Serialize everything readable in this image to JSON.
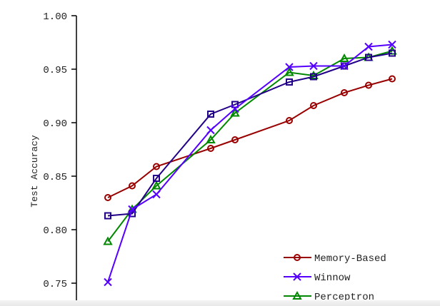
{
  "chart_data": {
    "type": "line",
    "title": "",
    "xlabel": "",
    "ylabel": "Test Accuracy",
    "ylim": [
      0.72,
      1.0
    ],
    "yticks": [
      "0.75",
      "0.80",
      "0.85",
      "0.90",
      "0.95",
      "1.00"
    ],
    "grid": false,
    "legend_position": "bottom-right",
    "series": [
      {
        "name": "Memory-Based",
        "color": "#990000",
        "marker": "circle",
        "values": [
          0.83,
          0.841,
          0.859,
          0.876,
          0.884,
          0.902,
          0.916,
          0.928,
          0.935,
          0.941
        ]
      },
      {
        "name": "Winnow",
        "color": "#5500ff",
        "marker": "x",
        "values": [
          0.751,
          0.819,
          0.833,
          0.893,
          0.913,
          0.952,
          0.953,
          0.953,
          0.971,
          0.973
        ]
      },
      {
        "name": "Perceptron",
        "color": "#008800",
        "marker": "triangle",
        "values": [
          0.789,
          0.819,
          0.841,
          0.884,
          0.909,
          0.947,
          0.944,
          0.96,
          0.961,
          0.967
        ]
      },
      {
        "color": "#220088",
        "marker": "square",
        "values": [
          0.813,
          0.815,
          0.848,
          0.908,
          0.917,
          0.938,
          0.943,
          0.953,
          0.961,
          0.965
        ]
      }
    ]
  }
}
